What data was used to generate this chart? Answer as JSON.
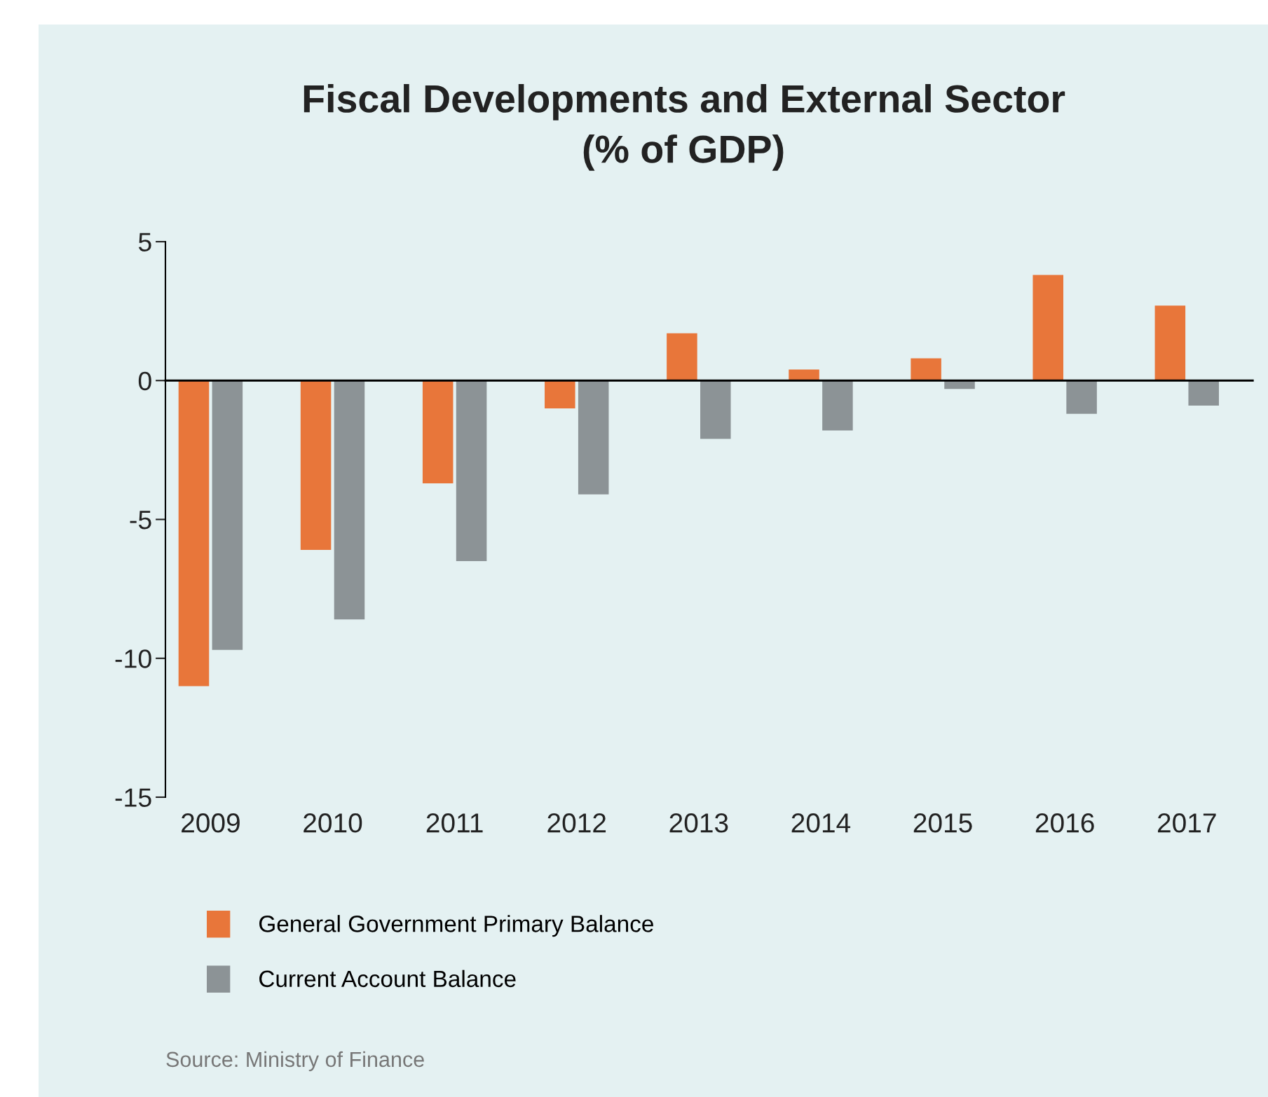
{
  "chart_data": {
    "type": "bar",
    "title": "Fiscal Developments and External Sector\n(% of GDP)",
    "categories": [
      "2009",
      "2010",
      "2011",
      "2012",
      "2013",
      "2014",
      "2015",
      "2016",
      "2017"
    ],
    "series": [
      {
        "name": "General Government Primary Balance",
        "color": "#e8763a",
        "values": [
          -11.0,
          -6.1,
          -3.7,
          -1.0,
          1.7,
          0.4,
          0.8,
          3.8,
          2.7
        ]
      },
      {
        "name": "Current Account Balance",
        "color": "#8c9396",
        "values": [
          -9.7,
          -8.6,
          -6.5,
          -4.1,
          -2.1,
          -1.8,
          -0.3,
          -1.2,
          -0.9
        ]
      }
    ],
    "ylim": [
      -15,
      5
    ],
    "yticks": [
      -15,
      -10,
      -5,
      0,
      5
    ],
    "legend": "bottom left",
    "annotations": [
      "Source: Ministry of Finance"
    ]
  }
}
